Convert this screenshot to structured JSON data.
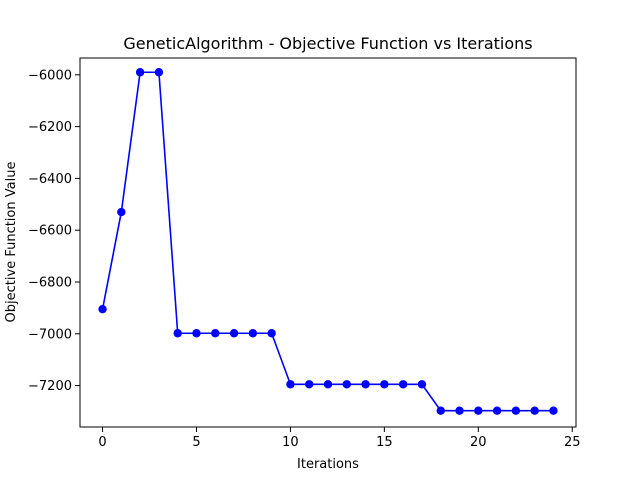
{
  "chart_data": {
    "type": "line",
    "title": "GeneticAlgorithm - Objective Function vs Iterations",
    "xlabel": "Iterations",
    "ylabel": "Objective Function Value",
    "xlim": [
      -1.2,
      25.2
    ],
    "ylim": [
      -7360,
      -5935
    ],
    "x_ticks": [
      0,
      5,
      10,
      15,
      20,
      25
    ],
    "x_tick_labels": [
      "0",
      "5",
      "10",
      "15",
      "20",
      "25"
    ],
    "y_ticks": [
      -7200,
      -7000,
      -6800,
      -6600,
      -6400,
      -6200,
      -6000
    ],
    "y_tick_labels": [
      "−7200",
      "−7000",
      "−6800",
      "−6600",
      "−6400",
      "−6200",
      "−6000"
    ],
    "grid": false,
    "line_color": "#0000ff",
    "marker": "circle",
    "x": [
      0,
      1,
      2,
      3,
      4,
      5,
      6,
      7,
      8,
      9,
      10,
      11,
      12,
      13,
      14,
      15,
      16,
      17,
      18,
      19,
      20,
      21,
      22,
      23,
      24
    ],
    "y": [
      -6905,
      -6530,
      -5990,
      -5990,
      -6998,
      -6998,
      -6998,
      -6998,
      -6998,
      -6998,
      -7195,
      -7195,
      -7195,
      -7195,
      -7195,
      -7195,
      -7195,
      -7195,
      -7297,
      -7297,
      -7297,
      -7297,
      -7297,
      -7297,
      -7297
    ]
  }
}
